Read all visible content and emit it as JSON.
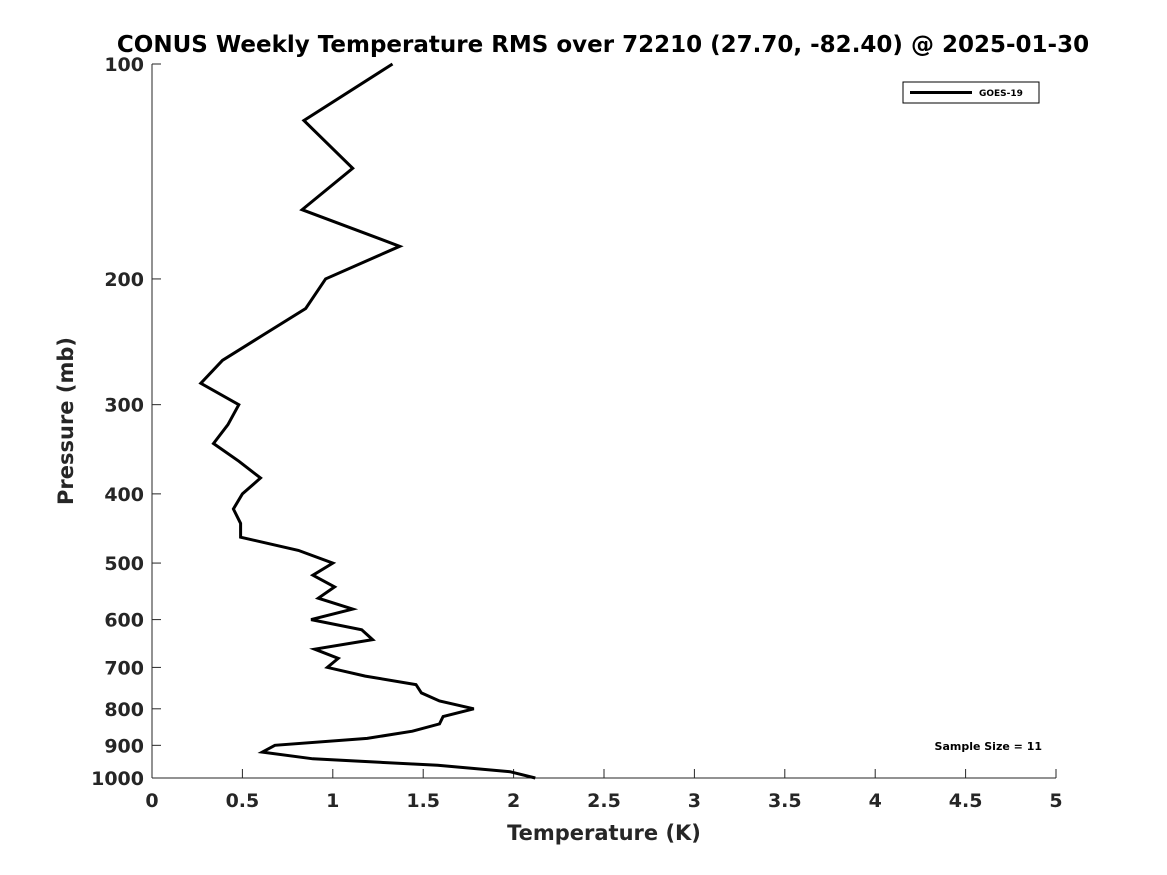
{
  "chart_data": {
    "type": "line",
    "title": "CONUS Weekly Temperature RMS over 72210 (27.70, -82.40) @ 2025-01-30",
    "xlabel": "Temperature (K)",
    "ylabel": "Pressure (mb)",
    "xlim": [
      0,
      5
    ],
    "ylim": [
      100,
      1000
    ],
    "yscale": "log",
    "yreversed": true,
    "grid": false,
    "legend_placement": "top-right",
    "xticks": [
      "0",
      "0.5",
      "1",
      "1.5",
      "2",
      "2.5",
      "3",
      "3.5",
      "4",
      "4.5",
      "5"
    ],
    "yticks": [
      "100",
      "200",
      "300",
      "400",
      "500",
      "600",
      "700",
      "800",
      "900",
      "1000"
    ],
    "annotation": "Sample Size = 11",
    "series": [
      {
        "name": "GOES-19",
        "color": "#000000",
        "pressure": [
          100,
          120,
          140,
          160,
          180,
          200,
          220,
          240,
          260,
          280,
          300,
          320,
          340,
          360,
          380,
          400,
          420,
          440,
          460,
          480,
          500,
          520,
          540,
          560,
          580,
          600,
          620,
          640,
          660,
          680,
          700,
          720,
          740,
          760,
          780,
          800,
          820,
          840,
          860,
          880,
          900,
          920,
          940,
          960,
          980,
          1000
        ],
        "values": [
          1.33,
          0.84,
          1.11,
          0.83,
          1.37,
          0.96,
          0.85,
          0.61,
          0.39,
          0.27,
          0.48,
          0.42,
          0.34,
          0.48,
          0.6,
          0.5,
          0.45,
          0.49,
          0.49,
          0.81,
          1.0,
          0.89,
          1.01,
          0.92,
          1.11,
          0.88,
          1.16,
          1.22,
          0.9,
          1.03,
          0.97,
          1.18,
          1.46,
          1.49,
          1.59,
          1.78,
          1.61,
          1.59,
          1.44,
          1.19,
          0.68,
          0.61,
          0.89,
          1.58,
          1.98,
          2.12
        ]
      }
    ]
  }
}
